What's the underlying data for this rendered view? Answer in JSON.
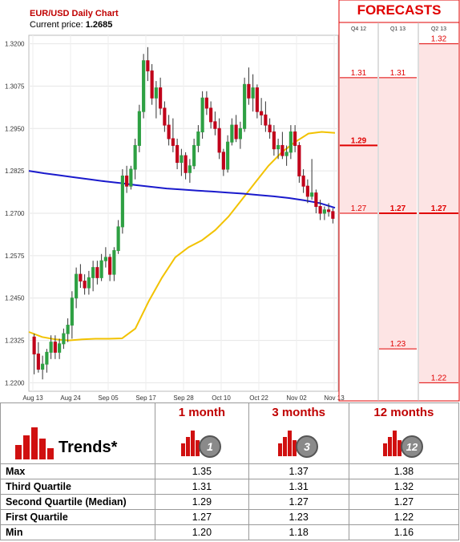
{
  "header": {
    "title": "EUR/USD Daily Chart",
    "price_label": "Current price:",
    "price_value": "1.2685",
    "forecasts_title": "FORECASTS"
  },
  "colors": {
    "up": "#2ea043",
    "down": "#c0001a",
    "ma_short": "#1a1acc",
    "ma_long": "#f2c200",
    "forecast_red": "#e00000",
    "forecast_bg": "#fde4e4"
  },
  "chart_data": [
    {
      "type": "candlestick",
      "title": "EUR/USD Daily Chart",
      "y_ticks": [
        "1.2200",
        "1.2325",
        "1.2450",
        "1.2575",
        "1.2700",
        "1.2825",
        "1.2950",
        "1.3075",
        "1.3200"
      ],
      "x_ticks": [
        "Aug 13",
        "Aug 24",
        "Sep 05",
        "Sep 17",
        "Sep 28",
        "Oct 10",
        "Oct 22",
        "Nov 02",
        "Nov 13"
      ],
      "ylim": [
        1.2175,
        1.3225
      ],
      "grid": true,
      "candles": [
        {
          "o": 1.2335,
          "h": 1.2345,
          "l": 1.2225,
          "c": 1.2285
        },
        {
          "o": 1.2285,
          "h": 1.232,
          "l": 1.223,
          "c": 1.224
        },
        {
          "o": 1.224,
          "h": 1.228,
          "l": 1.221,
          "c": 1.2255
        },
        {
          "o": 1.2255,
          "h": 1.23,
          "l": 1.223,
          "c": 1.229
        },
        {
          "o": 1.229,
          "h": 1.234,
          "l": 1.227,
          "c": 1.232
        },
        {
          "o": 1.232,
          "h": 1.234,
          "l": 1.227,
          "c": 1.229
        },
        {
          "o": 1.229,
          "h": 1.233,
          "l": 1.227,
          "c": 1.2315
        },
        {
          "o": 1.2315,
          "h": 1.236,
          "l": 1.23,
          "c": 1.2345
        },
        {
          "o": 1.2345,
          "h": 1.239,
          "l": 1.232,
          "c": 1.237
        },
        {
          "o": 1.237,
          "h": 1.247,
          "l": 1.233,
          "c": 1.245
        },
        {
          "o": 1.245,
          "h": 1.254,
          "l": 1.242,
          "c": 1.252
        },
        {
          "o": 1.252,
          "h": 1.255,
          "l": 1.248,
          "c": 1.25
        },
        {
          "o": 1.25,
          "h": 1.252,
          "l": 1.246,
          "c": 1.248
        },
        {
          "o": 1.248,
          "h": 1.253,
          "l": 1.246,
          "c": 1.251
        },
        {
          "o": 1.251,
          "h": 1.256,
          "l": 1.247,
          "c": 1.254
        },
        {
          "o": 1.254,
          "h": 1.256,
          "l": 1.249,
          "c": 1.251
        },
        {
          "o": 1.251,
          "h": 1.258,
          "l": 1.25,
          "c": 1.256
        },
        {
          "o": 1.256,
          "h": 1.26,
          "l": 1.254,
          "c": 1.257
        },
        {
          "o": 1.257,
          "h": 1.258,
          "l": 1.25,
          "c": 1.252
        },
        {
          "o": 1.252,
          "h": 1.26,
          "l": 1.25,
          "c": 1.259
        },
        {
          "o": 1.259,
          "h": 1.268,
          "l": 1.258,
          "c": 1.266
        },
        {
          "o": 1.266,
          "h": 1.283,
          "l": 1.264,
          "c": 1.281
        },
        {
          "o": 1.281,
          "h": 1.284,
          "l": 1.276,
          "c": 1.278
        },
        {
          "o": 1.278,
          "h": 1.284,
          "l": 1.277,
          "c": 1.283
        },
        {
          "o": 1.283,
          "h": 1.292,
          "l": 1.28,
          "c": 1.29
        },
        {
          "o": 1.29,
          "h": 1.302,
          "l": 1.288,
          "c": 1.3
        },
        {
          "o": 1.3,
          "h": 1.317,
          "l": 1.298,
          "c": 1.315
        },
        {
          "o": 1.315,
          "h": 1.319,
          "l": 1.309,
          "c": 1.312
        },
        {
          "o": 1.312,
          "h": 1.314,
          "l": 1.302,
          "c": 1.304
        },
        {
          "o": 1.304,
          "h": 1.309,
          "l": 1.298,
          "c": 1.307
        },
        {
          "o": 1.307,
          "h": 1.31,
          "l": 1.299,
          "c": 1.301
        },
        {
          "o": 1.301,
          "h": 1.303,
          "l": 1.294,
          "c": 1.296
        },
        {
          "o": 1.296,
          "h": 1.299,
          "l": 1.29,
          "c": 1.292
        },
        {
          "o": 1.292,
          "h": 1.298,
          "l": 1.288,
          "c": 1.29
        },
        {
          "o": 1.29,
          "h": 1.292,
          "l": 1.283,
          "c": 1.285
        },
        {
          "o": 1.285,
          "h": 1.289,
          "l": 1.281,
          "c": 1.287
        },
        {
          "o": 1.287,
          "h": 1.288,
          "l": 1.28,
          "c": 1.282
        },
        {
          "o": 1.282,
          "h": 1.286,
          "l": 1.279,
          "c": 1.284
        },
        {
          "o": 1.284,
          "h": 1.292,
          "l": 1.283,
          "c": 1.29
        },
        {
          "o": 1.29,
          "h": 1.296,
          "l": 1.288,
          "c": 1.294
        },
        {
          "o": 1.294,
          "h": 1.306,
          "l": 1.292,
          "c": 1.304
        },
        {
          "o": 1.304,
          "h": 1.306,
          "l": 1.299,
          "c": 1.301
        },
        {
          "o": 1.301,
          "h": 1.303,
          "l": 1.295,
          "c": 1.297
        },
        {
          "o": 1.297,
          "h": 1.3,
          "l": 1.293,
          "c": 1.295
        },
        {
          "o": 1.295,
          "h": 1.298,
          "l": 1.286,
          "c": 1.288
        },
        {
          "o": 1.288,
          "h": 1.289,
          "l": 1.281,
          "c": 1.283
        },
        {
          "o": 1.283,
          "h": 1.293,
          "l": 1.282,
          "c": 1.291
        },
        {
          "o": 1.291,
          "h": 1.298,
          "l": 1.29,
          "c": 1.296
        },
        {
          "o": 1.296,
          "h": 1.299,
          "l": 1.291,
          "c": 1.292
        },
        {
          "o": 1.292,
          "h": 1.297,
          "l": 1.289,
          "c": 1.295
        },
        {
          "o": 1.295,
          "h": 1.31,
          "l": 1.294,
          "c": 1.308
        },
        {
          "o": 1.308,
          "h": 1.313,
          "l": 1.302,
          "c": 1.304
        },
        {
          "o": 1.304,
          "h": 1.311,
          "l": 1.3,
          "c": 1.307
        },
        {
          "o": 1.307,
          "h": 1.308,
          "l": 1.298,
          "c": 1.3
        },
        {
          "o": 1.3,
          "h": 1.304,
          "l": 1.296,
          "c": 1.299
        },
        {
          "o": 1.299,
          "h": 1.303,
          "l": 1.294,
          "c": 1.296
        },
        {
          "o": 1.296,
          "h": 1.298,
          "l": 1.292,
          "c": 1.294
        },
        {
          "o": 1.294,
          "h": 1.296,
          "l": 1.287,
          "c": 1.289
        },
        {
          "o": 1.289,
          "h": 1.292,
          "l": 1.286,
          "c": 1.29
        },
        {
          "o": 1.29,
          "h": 1.294,
          "l": 1.286,
          "c": 1.287
        },
        {
          "o": 1.287,
          "h": 1.29,
          "l": 1.284,
          "c": 1.288
        },
        {
          "o": 1.288,
          "h": 1.296,
          "l": 1.286,
          "c": 1.294
        },
        {
          "o": 1.294,
          "h": 1.296,
          "l": 1.288,
          "c": 1.29
        },
        {
          "o": 1.29,
          "h": 1.291,
          "l": 1.279,
          "c": 1.281
        },
        {
          "o": 1.281,
          "h": 1.283,
          "l": 1.276,
          "c": 1.278
        },
        {
          "o": 1.278,
          "h": 1.28,
          "l": 1.273,
          "c": 1.275
        },
        {
          "o": 1.275,
          "h": 1.286,
          "l": 1.274,
          "c": 1.276
        },
        {
          "o": 1.276,
          "h": 1.277,
          "l": 1.27,
          "c": 1.272
        },
        {
          "o": 1.272,
          "h": 1.274,
          "l": 1.268,
          "c": 1.27
        },
        {
          "o": 1.27,
          "h": 1.272,
          "l": 1.268,
          "c": 1.271
        },
        {
          "o": 1.271,
          "h": 1.273,
          "l": 1.269,
          "c": 1.2705
        },
        {
          "o": 1.2705,
          "h": 1.2715,
          "l": 1.267,
          "c": 1.2685
        }
      ],
      "ma_series": [
        {
          "points": [
            1.2825,
            1.2818,
            1.2812,
            1.2806,
            1.28,
            1.2794,
            1.2789,
            1.2783,
            1.2778,
            1.2773,
            1.277,
            1.2767,
            1.2764,
            1.2761,
            1.2758,
            1.2754,
            1.275,
            1.2745,
            1.2738,
            1.273,
            1.2716
          ]
        },
        {
          "points": [
            1.235,
            1.2335,
            1.2328,
            1.2325,
            1.2328,
            1.233,
            1.233,
            1.2331,
            1.236,
            1.244,
            1.251,
            1.257,
            1.26,
            1.262,
            1.265,
            1.269,
            1.274,
            1.279,
            1.284,
            1.288,
            1.291,
            1.2935,
            1.294,
            1.2937
          ]
        }
      ]
    },
    {
      "type": "forecast-columns",
      "columns": [
        {
          "label": "Q4 12",
          "values": [
            {
              "text": "1.31",
              "v": 1.31,
              "bold": false
            },
            {
              "text": "1.29",
              "v": 1.29,
              "bold": true
            },
            {
              "text": "1.27",
              "v": 1.27,
              "bold": false
            }
          ]
        },
        {
          "label": "Q1 13",
          "values": [
            {
              "text": "1.31",
              "v": 1.31,
              "bold": false
            },
            {
              "text": "1.27",
              "v": 1.27,
              "bold": true
            },
            {
              "text": "1.23",
              "v": 1.23,
              "bold": false
            }
          ]
        },
        {
          "label": "Q2 13",
          "values": [
            {
              "text": "1.32",
              "v": 1.32,
              "bold": false
            },
            {
              "text": "1.27",
              "v": 1.27,
              "bold": true
            },
            {
              "text": "1.22",
              "v": 1.22,
              "bold": false
            }
          ]
        }
      ]
    }
  ],
  "trends": {
    "title": "Trends*",
    "headers": [
      "1 month",
      "3 months",
      "12 months"
    ],
    "badges": [
      "1",
      "3",
      "12"
    ],
    "rows": [
      {
        "label": "Max",
        "values": [
          "1.35",
          "1.37",
          "1.38"
        ]
      },
      {
        "label": "Third Quartile",
        "values": [
          "1.31",
          "1.31",
          "1.32"
        ]
      },
      {
        "label": "Second Quartile (Median)",
        "values": [
          "1.29",
          "1.27",
          "1.27"
        ]
      },
      {
        "label": "First Quartile",
        "values": [
          "1.27",
          "1.23",
          "1.22"
        ]
      },
      {
        "label": "Min",
        "values": [
          "1.20",
          "1.18",
          "1.16"
        ]
      }
    ]
  }
}
